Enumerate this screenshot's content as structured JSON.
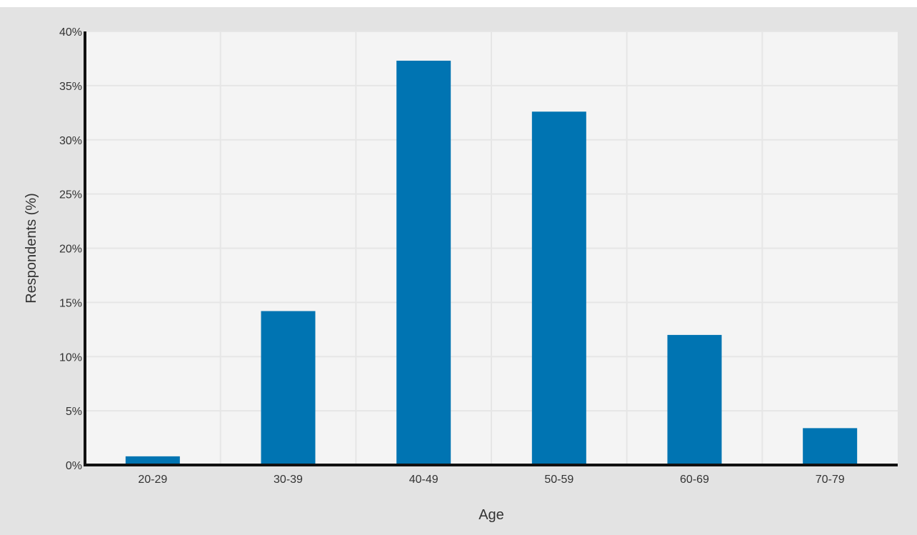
{
  "chart_data": {
    "type": "bar",
    "title": "",
    "xlabel": "Age",
    "ylabel": "Respondents (%)",
    "categories": [
      "20-29",
      "30-39",
      "40-49",
      "50-59",
      "60-69",
      "70-79"
    ],
    "values": [
      0.8,
      14.2,
      37.3,
      32.6,
      12.0,
      3.4
    ],
    "ylim": [
      0,
      40
    ],
    "yticks": [
      0,
      5,
      10,
      15,
      20,
      25,
      30,
      35,
      40
    ],
    "ytick_labels": [
      "0%",
      "5%",
      "10%",
      "15%",
      "20%",
      "25%",
      "30%",
      "35%",
      "40%"
    ],
    "grid": true,
    "legend": "none",
    "colors": {
      "bar": "#0074b2",
      "plot_background": "#f4f4f4",
      "card_background": "#e3e3e3",
      "grid": "#e6e6e6",
      "axis": "#111111",
      "text": "#333333"
    }
  }
}
